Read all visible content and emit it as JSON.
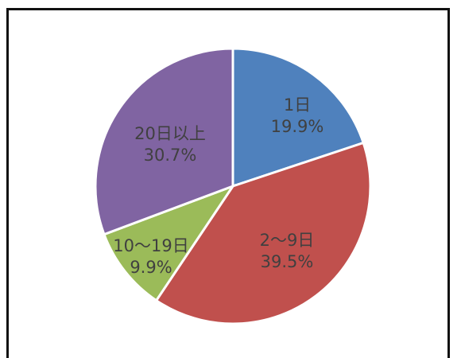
{
  "chart_data": {
    "type": "pie",
    "start_angle_deg": 0,
    "direction": "clockwise",
    "slices": [
      {
        "label": "1日",
        "value": 19.9,
        "value_label": "19.9%",
        "color": "#4f81bd"
      },
      {
        "label": "2～9日",
        "value": 39.5,
        "value_label": "39.5%",
        "color": "#c0504d"
      },
      {
        "label": "10～19日",
        "value": 9.9,
        "value_label": "9.9%",
        "color": "#9bbb59"
      },
      {
        "label": "20日以上",
        "value": 30.7,
        "value_label": "30.7%",
        "color": "#8064a2"
      }
    ],
    "legend": "none",
    "slice_border_color": "#ffffff"
  }
}
